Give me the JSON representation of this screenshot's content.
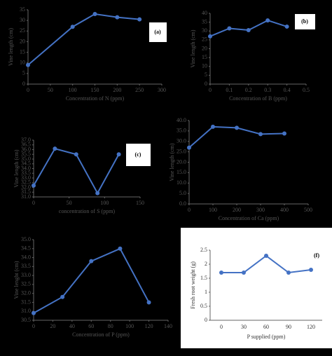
{
  "chart_data": [
    {
      "type": "line",
      "annotation": "(a)",
      "x_label": "Concentration of N (ppm)",
      "y_label": "Vine length (cm)",
      "x": [
        0,
        100,
        150,
        200,
        250
      ],
      "values": [
        9,
        27,
        33,
        31.5,
        30.5
      ],
      "color": "#4472c4",
      "xlim": [
        0,
        300
      ],
      "xticks": [
        0,
        50,
        100,
        150,
        200,
        250,
        300
      ],
      "ylim": [
        0,
        35
      ],
      "yticks": [
        0,
        5,
        10,
        15,
        20,
        25,
        30,
        35
      ]
    },
    {
      "type": "line",
      "annotation": "(b)",
      "x_label": "Concentration of B (ppm)",
      "y_label": "Vine length (cm)",
      "x": [
        0,
        0.1,
        0.2,
        0.3,
        0.4
      ],
      "values": [
        27,
        31.5,
        30.5,
        36,
        32.5
      ],
      "color": "#4472c4",
      "xlim": [
        0,
        0.5
      ],
      "xticks": [
        0,
        0.1,
        0.2,
        0.3,
        0.4,
        0.5
      ],
      "ylim": [
        0,
        40
      ],
      "yticks": [
        0,
        5,
        10,
        15,
        20,
        25,
        30,
        35,
        40
      ]
    },
    {
      "type": "line",
      "annotation": "(c)",
      "x_label": "concentration of S (ppm)",
      "y_label": "Vine length (cm)",
      "x": [
        0,
        30,
        60,
        90,
        120
      ],
      "values": [
        32.2,
        36.1,
        35.5,
        31.4,
        35.5
      ],
      "color": "#4472c4",
      "xlim": [
        0,
        150
      ],
      "xticks": [
        0,
        50,
        100,
        150
      ],
      "ylim": [
        31,
        37
      ],
      "yticks": [
        {
          "value": 31,
          "label": "31.0"
        },
        31.5,
        {
          "value": 32,
          "label": "32.0"
        },
        32.5,
        {
          "value": 33,
          "label": "33.0"
        },
        33.5,
        {
          "value": 34,
          "label": "34.0"
        },
        34.5,
        {
          "value": 35,
          "label": "35.0"
        },
        35.5,
        {
          "value": 36,
          "label": "36.0"
        },
        36.5,
        {
          "value": 37,
          "label": "37.0"
        }
      ]
    },
    {
      "type": "line",
      "x_label": "Concentration of Ca (ppm)",
      "y_label": "Vine length (cm)",
      "x": [
        0,
        100,
        200,
        300,
        400
      ],
      "values": [
        27,
        37,
        36.5,
        33.5,
        33.8
      ],
      "color": "#4472c4",
      "xlim": [
        0,
        500
      ],
      "xticks": [
        0,
        100,
        200,
        300,
        400,
        500
      ],
      "ylim": [
        0,
        40
      ],
      "yticks": [
        {
          "value": 0,
          "label": "0.0"
        },
        {
          "value": 5,
          "label": "5.0"
        },
        {
          "value": 10,
          "label": "10.0"
        },
        {
          "value": 15,
          "label": "15.0"
        },
        {
          "value": 20,
          "label": "20.0"
        },
        {
          "value": 25,
          "label": "25.0"
        },
        {
          "value": 30,
          "label": "30.0"
        },
        {
          "value": 35,
          "label": "35.0"
        },
        {
          "value": 40,
          "label": "40.0"
        }
      ]
    },
    {
      "type": "line",
      "x_label": "Concentration of P (ppm)",
      "y_label": "Vine lenght (cm)",
      "x": [
        0,
        30,
        60,
        90,
        120
      ],
      "values": [
        30.9,
        31.8,
        33.8,
        34.5,
        31.5
      ],
      "color": "#4472c4",
      "xlim": [
        0,
        140
      ],
      "xticks": [
        0,
        20,
        40,
        60,
        80,
        100,
        120,
        140
      ],
      "ylim": [
        30.5,
        35
      ],
      "yticks": [
        30.5,
        {
          "value": 31,
          "label": "31.0"
        },
        31.5,
        {
          "value": 32,
          "label": "32.0"
        },
        32.5,
        {
          "value": 33,
          "label": "33.0"
        },
        33.5,
        {
          "value": 34,
          "label": "34.0"
        },
        34.5,
        {
          "value": 35,
          "label": "35.0"
        }
      ]
    },
    {
      "type": "category-line",
      "annotation": "(f)",
      "x_label": "P supplied (ppm)",
      "y_label": "Fresh root weight (g)",
      "categories": [
        "0",
        "30",
        "60",
        "90",
        "120"
      ],
      "values": [
        1.7,
        1.7,
        2.3,
        1.7,
        1.8
      ],
      "color": "#4472c4",
      "ylim": [
        0,
        2.5
      ],
      "yticks": [
        0,
        0.5,
        1,
        1.5,
        2,
        2.5
      ]
    }
  ]
}
